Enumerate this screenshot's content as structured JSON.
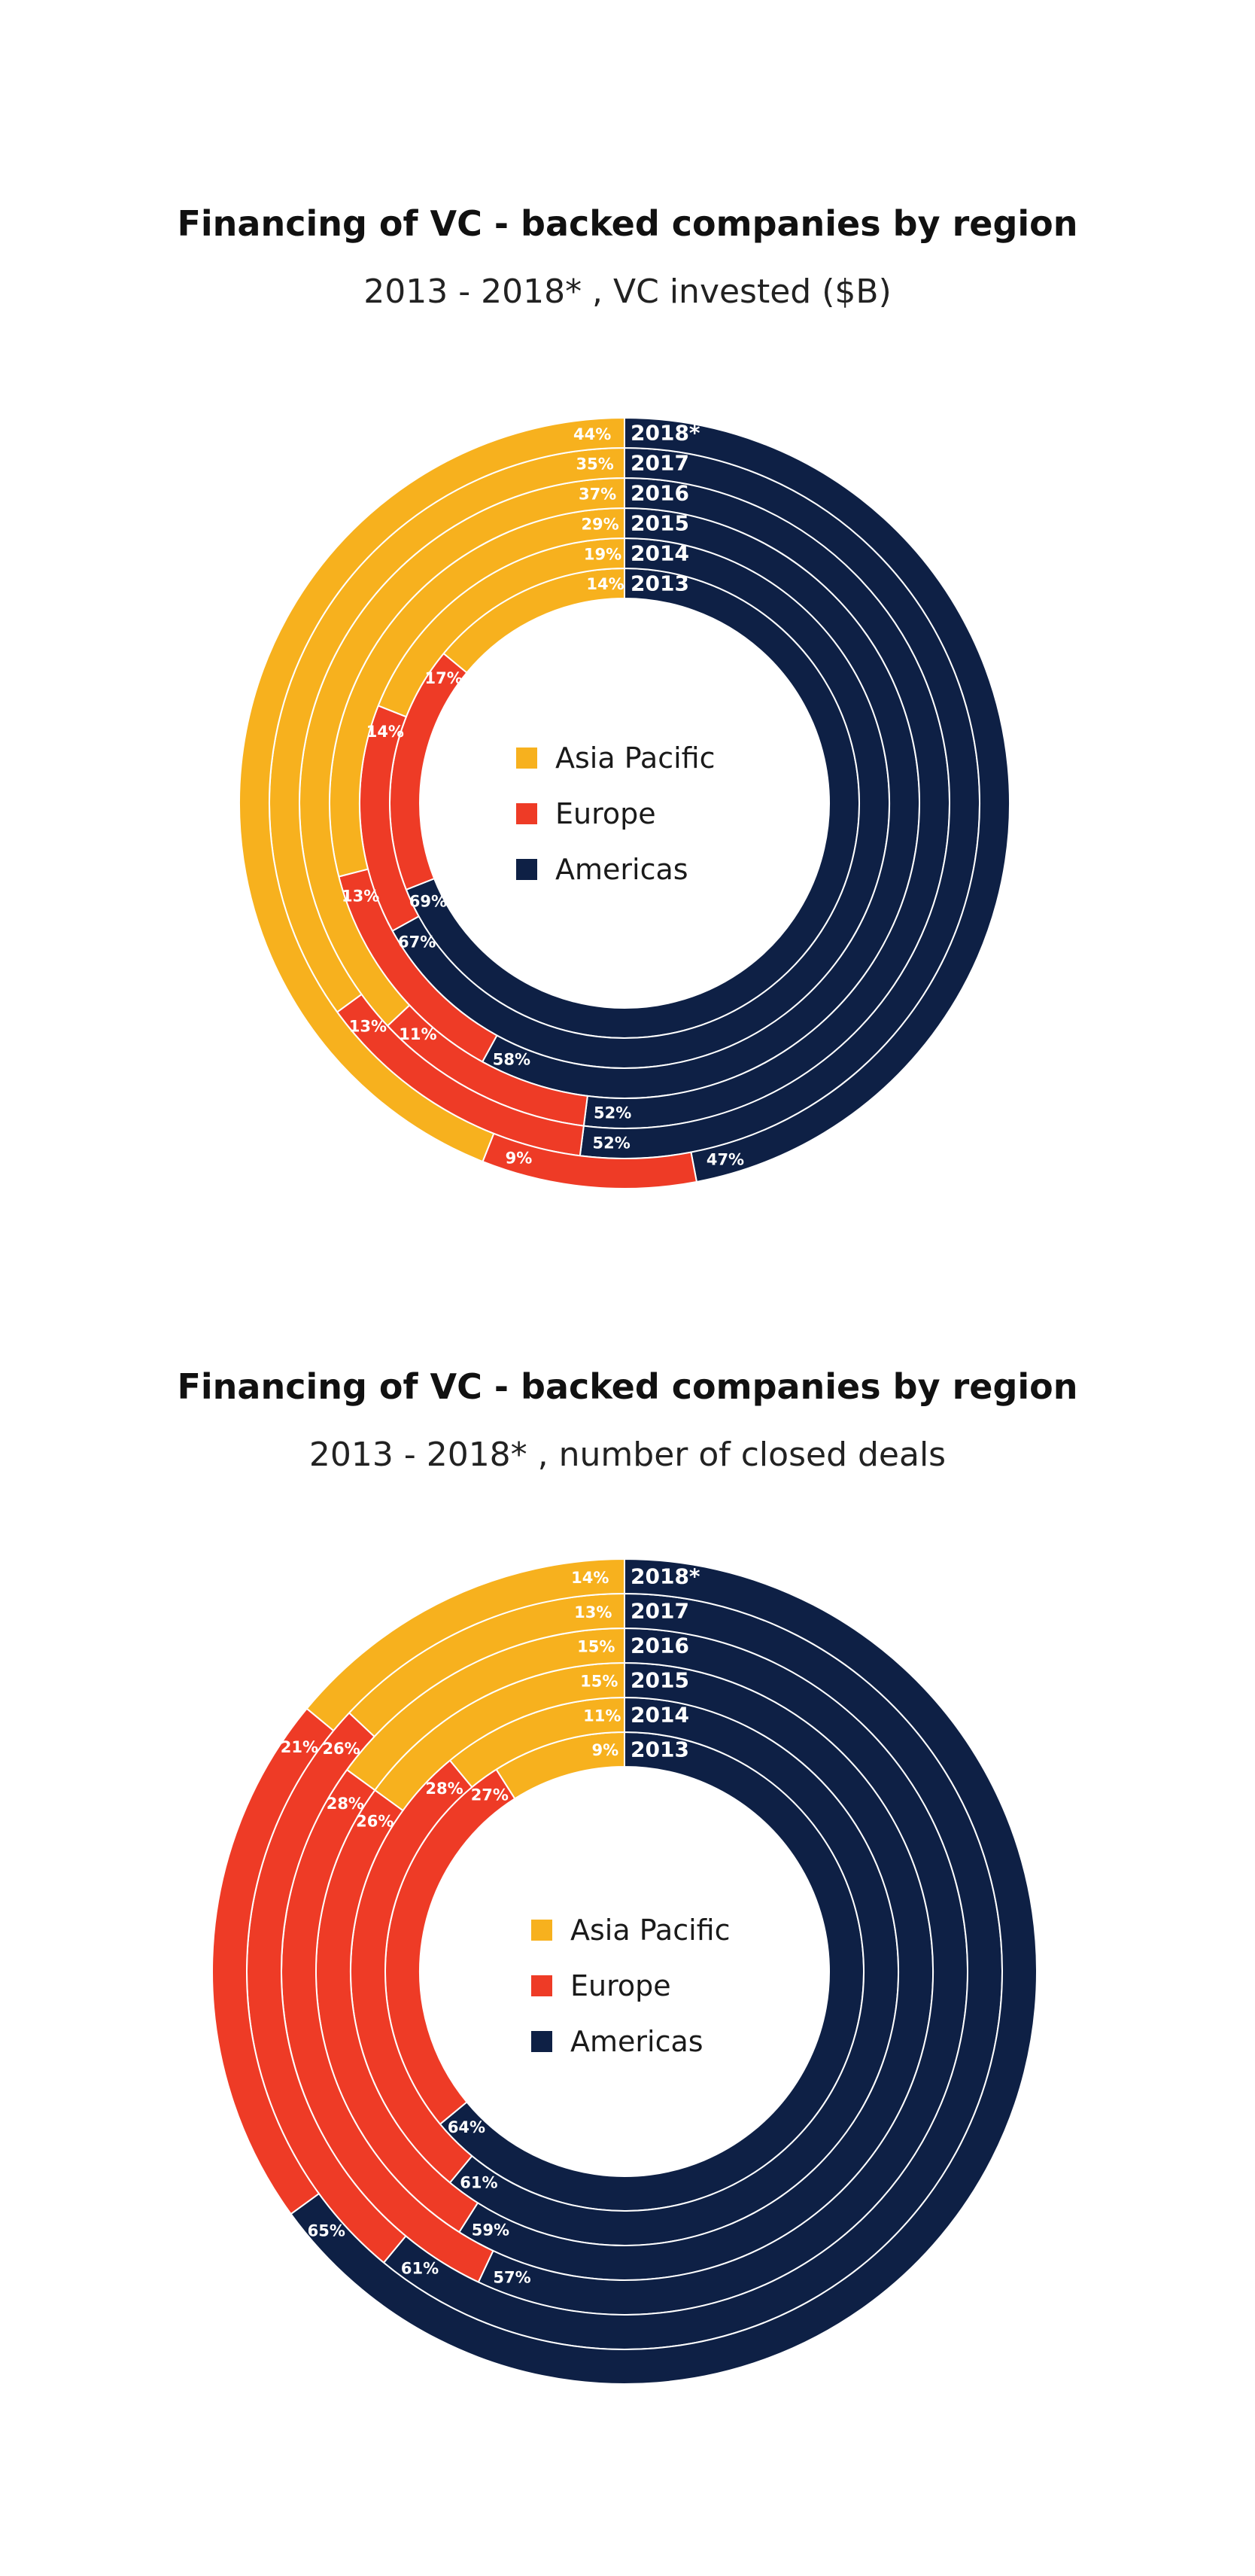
{
  "colors": {
    "asia_pacific": "#F7B11E",
    "europe": "#EE3B26",
    "americas": "#0E2045",
    "separator": "#ffffff"
  },
  "legend": [
    {
      "label": "Asia Pacific",
      "color": "#F7B11E"
    },
    {
      "label": "Europe",
      "color": "#EE3B26"
    },
    {
      "label": "Americas",
      "color": "#0E2045"
    }
  ],
  "chart_data": [
    {
      "type": "donut",
      "title": "Financing of VC - backed companies by region",
      "subtitle": "2013 - 2018* , VC invested ($B)",
      "unit": "%",
      "segment_order": [
        "Americas",
        "Europe",
        "Asia Pacific"
      ],
      "ring_order": "inner-to-outer",
      "rings": [
        {
          "label": "2013",
          "Americas": 69,
          "Europe": 17,
          "Asia Pacific": 14
        },
        {
          "label": "2014",
          "Americas": 67,
          "Europe": 14,
          "Asia Pacific": 19
        },
        {
          "label": "2015",
          "Americas": 58,
          "Europe": 13,
          "Asia Pacific": 29
        },
        {
          "label": "2016",
          "Americas": 52,
          "Europe": 11,
          "Asia Pacific": 37
        },
        {
          "label": "2017",
          "Americas": 52,
          "Europe": 13,
          "Asia Pacific": 35
        },
        {
          "label": "2018*",
          "Americas": 47,
          "Europe": 9,
          "Asia Pacific": 44
        }
      ],
      "shown_labels": {
        "Americas": [
          "69%",
          "67%",
          "58%",
          "52%",
          "52%",
          "47%"
        ],
        "Europe": [
          "17%",
          "14%",
          "13%",
          "11%",
          "13%",
          "9%"
        ],
        "Asia Pacific": [
          "14%",
          "19%",
          "29%",
          "37%",
          "35%",
          "44%"
        ]
      }
    },
    {
      "type": "donut",
      "title": "Financing of VC - backed companies by region",
      "subtitle": "2013 - 2018* , number of closed deals",
      "unit": "%",
      "segment_order": [
        "Americas",
        "Europe",
        "Asia Pacific"
      ],
      "ring_order": "inner-to-outer",
      "rings": [
        {
          "label": "2013",
          "Americas": 64,
          "Europe": 27,
          "Asia Pacific": 9
        },
        {
          "label": "2014",
          "Americas": 61,
          "Europe": 28,
          "Asia Pacific": 11
        },
        {
          "label": "2015",
          "Americas": 59,
          "Europe": 26,
          "Asia Pacific": 15
        },
        {
          "label": "2016",
          "Americas": 57,
          "Europe": 28,
          "Asia Pacific": 15
        },
        {
          "label": "2017",
          "Americas": 61,
          "Europe": 26,
          "Asia Pacific": 13
        },
        {
          "label": "2018*",
          "Americas": 65,
          "Europe": 21,
          "Asia Pacific": 14
        }
      ],
      "shown_labels": {
        "Americas": [
          "64%",
          "61%",
          "59%",
          "57%",
          "61%",
          "65%"
        ],
        "Europe": [
          "27%",
          "28%",
          "26%",
          "28%",
          "26%",
          "21%"
        ],
        "Asia Pacific": [
          "9%",
          "11%",
          "15%",
          "15%",
          "13%",
          "14%"
        ]
      }
    }
  ]
}
